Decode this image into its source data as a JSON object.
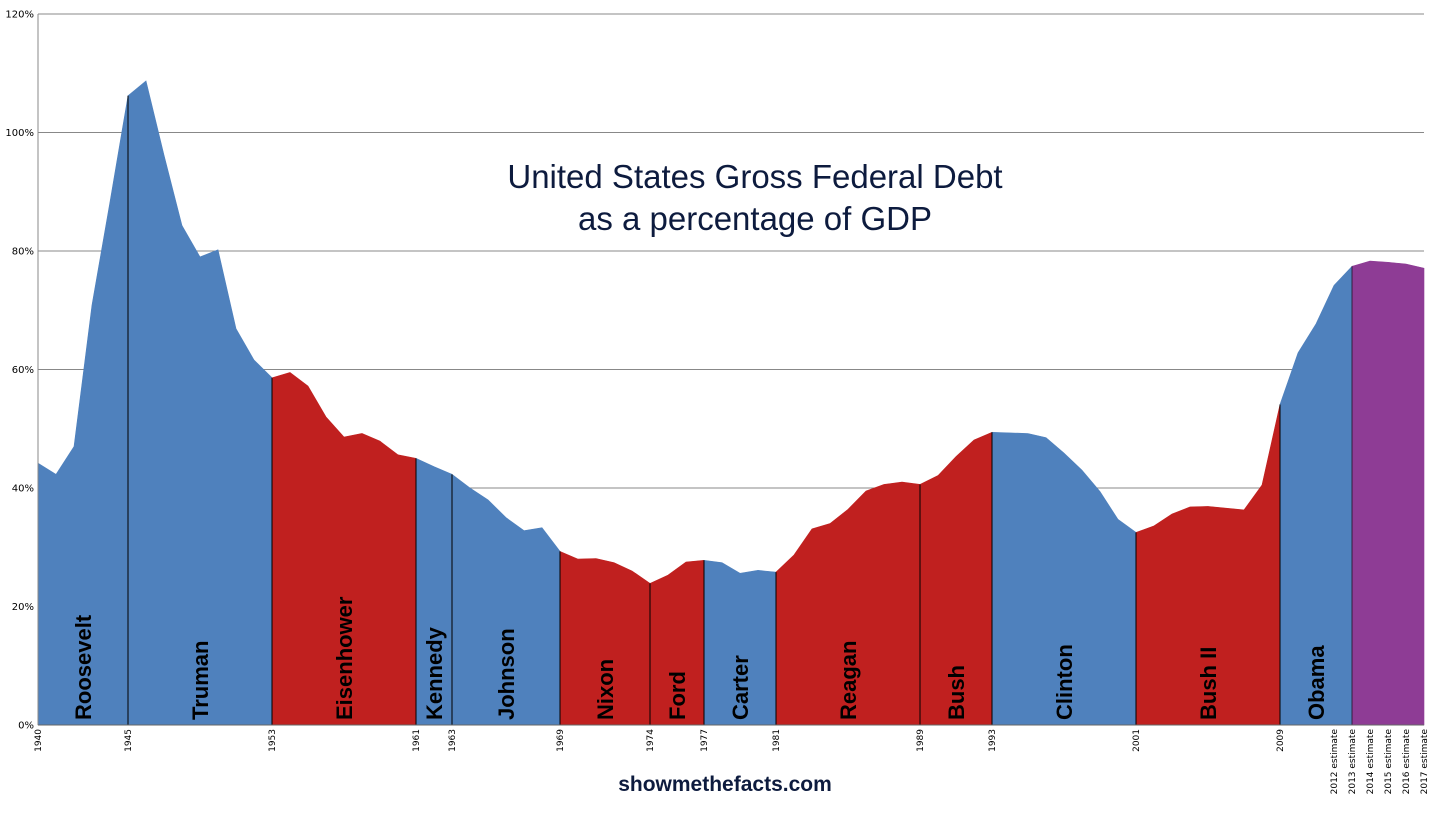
{
  "chart_data": {
    "type": "area",
    "title": "United States Gross Federal Debt",
    "subtitle": "as a percentage of GDP",
    "source": "showmethefacts.com",
    "ylabel": "",
    "xlabel": "",
    "ylim": [
      0,
      120
    ],
    "yticks": [
      "0%",
      "20%",
      "40%",
      "60%",
      "80%",
      "100%",
      "120%"
    ],
    "grid": true,
    "colors": {
      "democrat": "#4f81bd",
      "republican": "#c0201f",
      "estimate": "#8e3c95"
    },
    "x": [
      "1940",
      "1941",
      "1942",
      "1943",
      "1944",
      "1945",
      "1946",
      "1947",
      "1948",
      "1949",
      "1950",
      "1951",
      "1952",
      "1953",
      "1954",
      "1955",
      "1956",
      "1957",
      "1958",
      "1959",
      "1960",
      "1961",
      "1962",
      "1963",
      "1964",
      "1965",
      "1966",
      "1967",
      "1968",
      "1969",
      "1970",
      "1971",
      "1972",
      "1973",
      "1974",
      "1975",
      "1976",
      "1977",
      "1978",
      "1979",
      "1980",
      "1981",
      "1982",
      "1983",
      "1984",
      "1985",
      "1986",
      "1987",
      "1988",
      "1989",
      "1990",
      "1991",
      "1992",
      "1993",
      "1994",
      "1995",
      "1996",
      "1997",
      "1998",
      "1999",
      "2000",
      "2001",
      "2002",
      "2003",
      "2004",
      "2005",
      "2006",
      "2007",
      "2008",
      "2009",
      "2010",
      "2011",
      "2012 estimate",
      "2013 estimate",
      "2014 estimate",
      "2015 estimate",
      "2016 estimate",
      "2017 estimate"
    ],
    "values": [
      44.2,
      42.3,
      47.0,
      70.9,
      88.3,
      106.2,
      108.7,
      96.2,
      84.3,
      79.0,
      80.2,
      66.9,
      61.6,
      58.6,
      59.5,
      57.2,
      52.0,
      48.6,
      49.2,
      47.9,
      45.6,
      45.0,
      43.6,
      42.3,
      40.0,
      38.0,
      35.0,
      32.8,
      33.3,
      29.3,
      28.0,
      28.1,
      27.4,
      26.0,
      23.9,
      25.3,
      27.5,
      27.8,
      27.4,
      25.6,
      26.1,
      25.8,
      28.7,
      33.1,
      34.0,
      36.4,
      39.5,
      40.6,
      41.0,
      40.6,
      42.1,
      45.3,
      48.1,
      49.4,
      49.3,
      49.2,
      48.5,
      45.9,
      43.0,
      39.4,
      34.7,
      32.5,
      33.6,
      35.6,
      36.8,
      36.9,
      36.6,
      36.3,
      40.5,
      54.1,
      62.8,
      67.7,
      74.2,
      77.4,
      78.3,
      78.1,
      77.8,
      77.1
    ]
  },
  "presidents": [
    {
      "name": "Roosevelt",
      "start": 0,
      "end": 5,
      "party": "democrat"
    },
    {
      "name": "Truman",
      "start": 5,
      "end": 13,
      "party": "democrat"
    },
    {
      "name": "Eisenhower",
      "start": 13,
      "end": 21,
      "party": "republican"
    },
    {
      "name": "Kennedy",
      "start": 21,
      "end": 23,
      "party": "democrat"
    },
    {
      "name": "Johnson",
      "start": 23,
      "end": 29,
      "party": "democrat"
    },
    {
      "name": "Nixon",
      "start": 29,
      "end": 34,
      "party": "republican"
    },
    {
      "name": "Ford",
      "start": 34,
      "end": 37,
      "party": "republican"
    },
    {
      "name": "Carter",
      "start": 37,
      "end": 41,
      "party": "democrat"
    },
    {
      "name": "Reagan",
      "start": 41,
      "end": 49,
      "party": "republican"
    },
    {
      "name": "Bush",
      "start": 49,
      "end": 53,
      "party": "republican"
    },
    {
      "name": "Clinton",
      "start": 53,
      "end": 61,
      "party": "democrat"
    },
    {
      "name": "Bush II",
      "start": 61,
      "end": 69,
      "party": "republican"
    },
    {
      "name": "Obama",
      "start": 69,
      "end": 73,
      "party": "democrat"
    },
    {
      "name": "",
      "start": 73,
      "end": 77,
      "party": "estimate"
    }
  ],
  "xtick_labels": [
    "1940",
    "1945",
    "1953",
    "1961",
    "1963",
    "1969",
    "1974",
    "1977",
    "1981",
    "1989",
    "1993",
    "2001",
    "2009",
    "2012 estimate",
    "2013 estimate",
    "2014 estimate",
    "2015 estimate",
    "2016 estimate",
    "2017 estimate"
  ]
}
